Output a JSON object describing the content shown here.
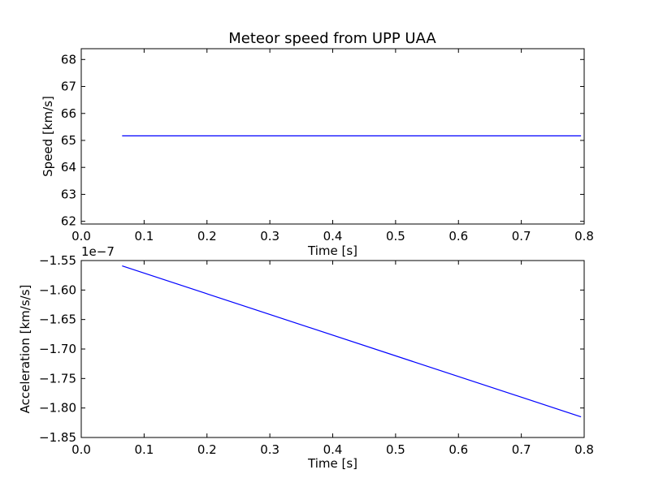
{
  "chart_data": [
    {
      "type": "line",
      "title": "Meteor speed from  UPP UAA",
      "xlabel": "Time [s]",
      "ylabel": "Speed [km/s]",
      "xlim": [
        0.0,
        0.8
      ],
      "ylim": [
        61.9,
        68.4
      ],
      "xticks": [
        "0.0",
        "0.1",
        "0.2",
        "0.3",
        "0.4",
        "0.5",
        "0.6",
        "0.7",
        "0.8"
      ],
      "yticks": [
        "62",
        "63",
        "64",
        "65",
        "66",
        "67",
        "68"
      ],
      "offset_label": "",
      "series": [
        {
          "color": "#0000ff",
          "x": [
            0.065,
            0.795
          ],
          "y": [
            65.17,
            65.17
          ]
        }
      ]
    },
    {
      "type": "line",
      "title": "",
      "xlabel": "Time [s]",
      "ylabel": "Acceleration [km/s/s]",
      "xlim": [
        0.0,
        0.8
      ],
      "ylim": [
        -1.85,
        -1.55
      ],
      "xticks": [
        "0.0",
        "0.1",
        "0.2",
        "0.3",
        "0.4",
        "0.5",
        "0.6",
        "0.7",
        "0.8"
      ],
      "yticks": [
        "−1.55",
        "−1.60",
        "−1.65",
        "−1.70",
        "−1.75",
        "−1.80",
        "−1.85"
      ],
      "offset_label": "1e−7",
      "series": [
        {
          "color": "#0000ff",
          "x": [
            0.065,
            0.795
          ],
          "y": [
            -1.559,
            -1.815
          ]
        }
      ]
    }
  ]
}
